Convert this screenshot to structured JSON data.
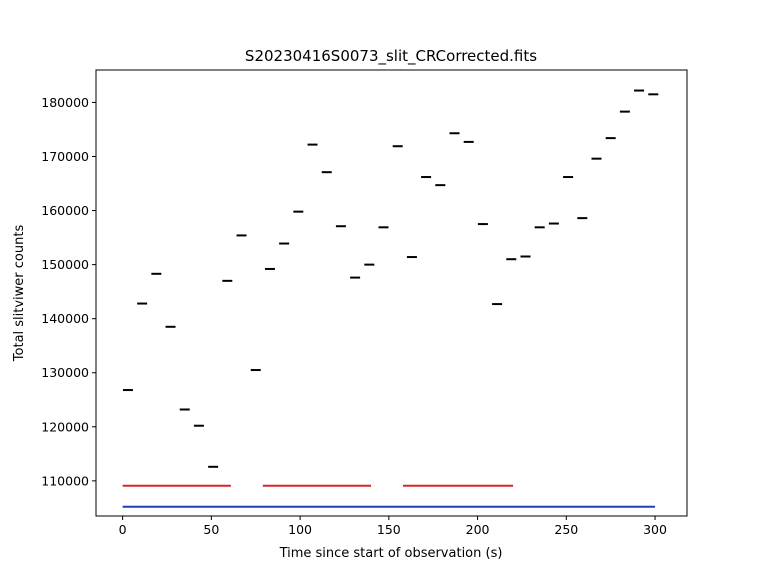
{
  "chart_data": {
    "type": "scatter",
    "title": "S20230416S0073_slit_CRCorrected.fits",
    "xlabel": "Time since start of observation (s)",
    "ylabel": "Total slitviwer counts",
    "xlim": [
      -15,
      318
    ],
    "ylim": [
      103500,
      186000
    ],
    "x_ticks": [
      0,
      50,
      100,
      150,
      200,
      250,
      300
    ],
    "y_ticks": [
      110000,
      120000,
      130000,
      140000,
      150000,
      160000,
      170000,
      180000
    ],
    "y_tick_labels": [
      "110000",
      "120000",
      "130000",
      "140000",
      "150000",
      "160000",
      "170000",
      "180000"
    ],
    "marker": "horizontal dash",
    "grid": false,
    "points": {
      "x": [
        3,
        11,
        19,
        27,
        35,
        43,
        51,
        59,
        67,
        75,
        83,
        91,
        99,
        107,
        115,
        123,
        131,
        139,
        147,
        155,
        163,
        171,
        179,
        187,
        195,
        203,
        211,
        219,
        227,
        235,
        243,
        251,
        259,
        267,
        275,
        283,
        291,
        299
      ],
      "y": [
        126800,
        142800,
        148300,
        138500,
        123200,
        120200,
        112600,
        147000,
        155400,
        130500,
        149200,
        153900,
        159800,
        172200,
        167100,
        157100,
        147600,
        150000,
        156900,
        171900,
        151400,
        166200,
        164700,
        174300,
        172700,
        157500,
        142700,
        151000,
        151500,
        156900,
        157600,
        166200,
        158600,
        169600,
        173400,
        178300,
        182200,
        181500
      ]
    },
    "segments": [
      {
        "color": "#d62728",
        "y": 109100,
        "x": [
          0,
          61
        ]
      },
      {
        "color": "#d62728",
        "y": 109100,
        "x": [
          79,
          140
        ]
      },
      {
        "color": "#d62728",
        "y": 109100,
        "x": [
          158,
          220
        ]
      },
      {
        "color": "#1f3fbf",
        "y": 105200,
        "x": [
          0,
          300
        ]
      }
    ]
  }
}
